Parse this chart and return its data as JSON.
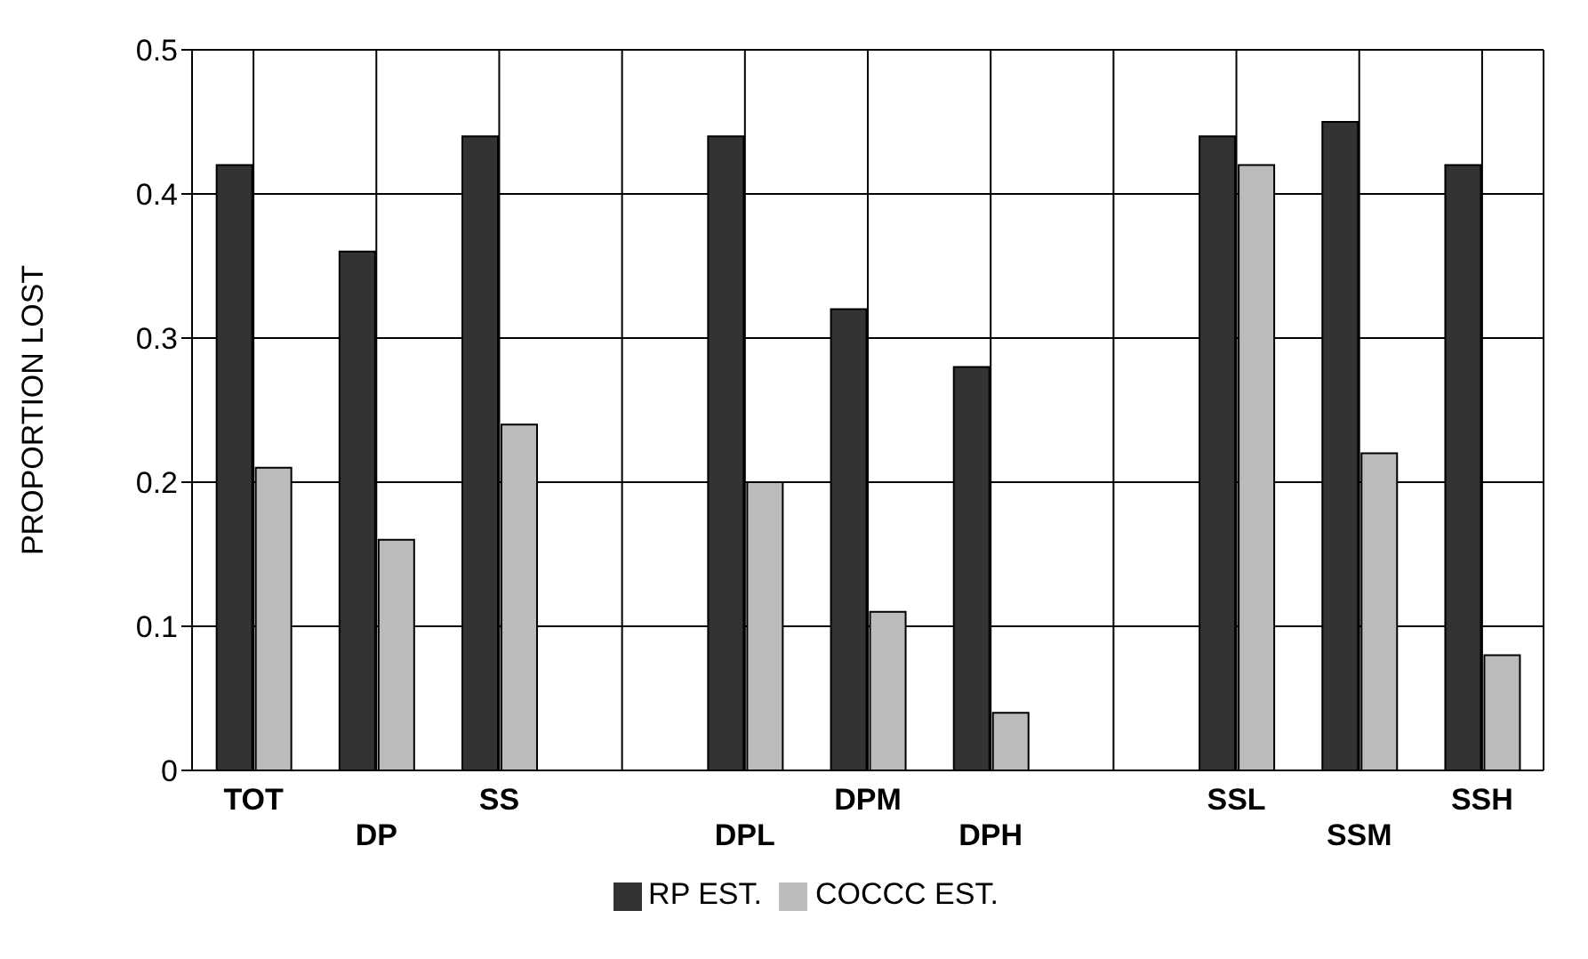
{
  "chart_data": {
    "type": "bar",
    "ylabel": "PROPORTION LOST",
    "categories": [
      "TOT",
      "DP",
      "SS",
      null,
      "DPL",
      "DPM",
      "DPH",
      null,
      "SSL",
      "SSM",
      "SSH"
    ],
    "series": [
      {
        "name": "RP EST.",
        "color": "#333333",
        "values": [
          0.42,
          0.36,
          0.44,
          null,
          0.44,
          0.32,
          0.28,
          null,
          0.44,
          0.45,
          0.42
        ]
      },
      {
        "name": "COCCC EST.",
        "color": "#bbbbbb",
        "values": [
          0.21,
          0.16,
          0.24,
          null,
          0.2,
          0.11,
          0.04,
          null,
          0.42,
          0.22,
          0.08
        ]
      }
    ],
    "ylim": [
      0,
      0.5
    ],
    "yticks": [
      0,
      0.1,
      0.2,
      0.3,
      0.4,
      0.5
    ],
    "grid": true,
    "legend": "bottom"
  }
}
